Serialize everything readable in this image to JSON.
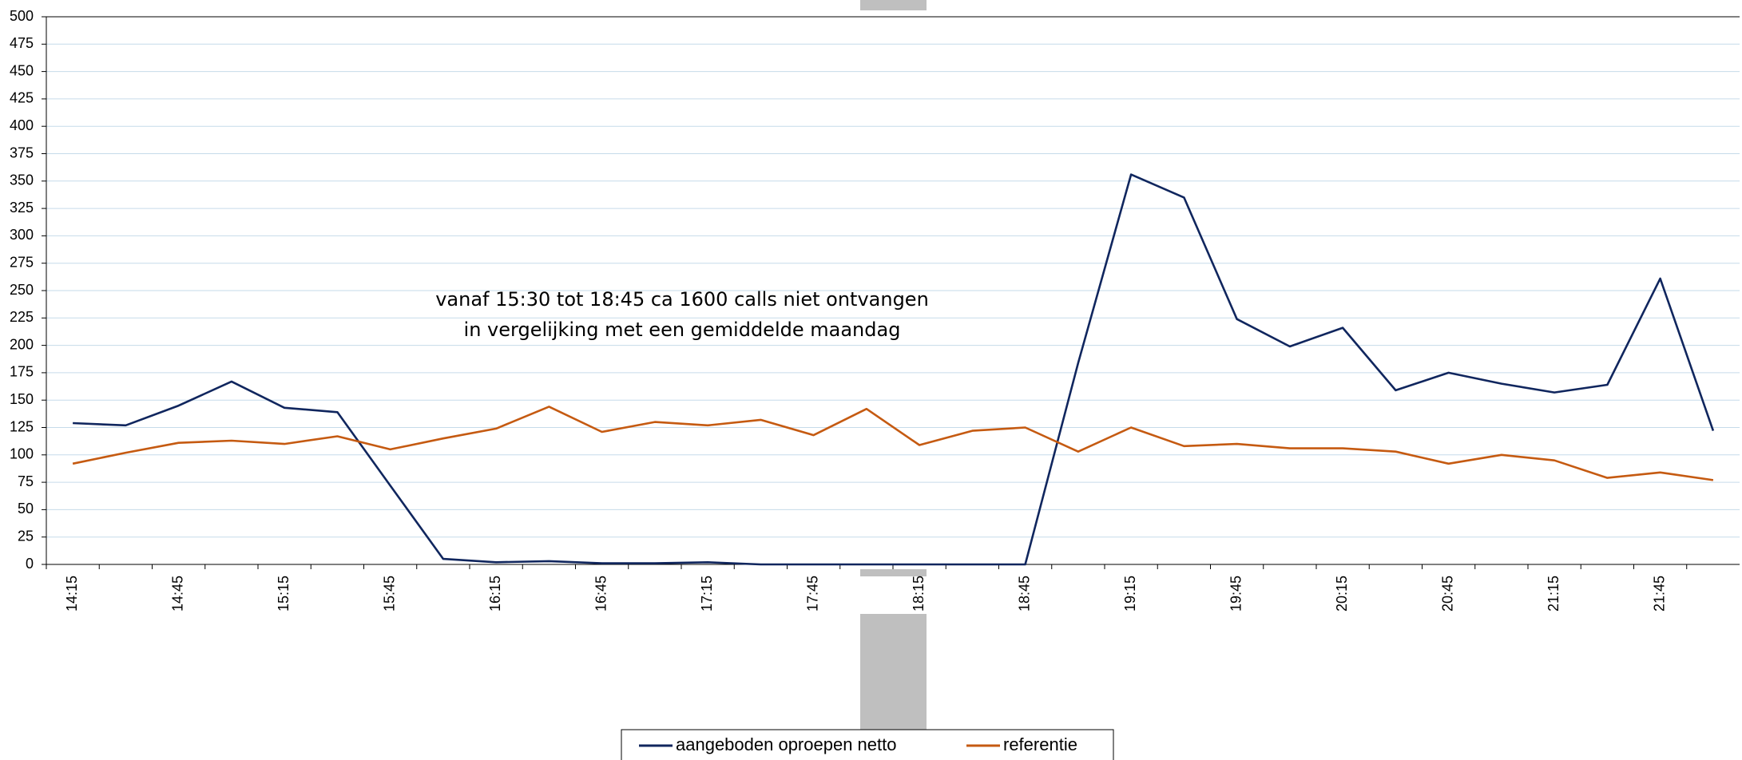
{
  "chart_data": {
    "type": "line",
    "annotation": [
      "vanaf 15:30 tot 18:45 ca 1600 calls  niet ontvangen",
      "in vergelijking met een gemiddelde maandag"
    ],
    "categories": [
      "14:15",
      null,
      "14:45",
      null,
      "15:15",
      null,
      "15:45",
      null,
      "16:15",
      null,
      "16:45",
      null,
      "17:15",
      null,
      "17:45",
      null,
      "18:15",
      null,
      "18:45",
      null,
      "19:15",
      null,
      "19:45",
      null,
      "20:15",
      null,
      "20:45",
      null,
      "21:15",
      null,
      "21:45",
      null
    ],
    "series": [
      {
        "name": "aangeboden oproepen netto",
        "color": "#10265e",
        "values": [
          129,
          127,
          145,
          167,
          143,
          139,
          72,
          5,
          2,
          3,
          1,
          1,
          2,
          0,
          0,
          0,
          0,
          0,
          0,
          184,
          356,
          335,
          224,
          199,
          216,
          159,
          175,
          165,
          157,
          164,
          261,
          122
        ]
      },
      {
        "name": "referentie",
        "color": "#c55a11",
        "values": [
          92,
          102,
          111,
          113,
          110,
          117,
          105,
          115,
          124,
          144,
          121,
          130,
          127,
          132,
          118,
          142,
          109,
          122,
          125,
          103,
          125,
          108,
          110,
          106,
          106,
          103,
          92,
          100,
          95,
          79,
          84,
          77
        ]
      }
    ],
    "ylim": [
      0,
      500
    ],
    "yticks": [
      0,
      25,
      50,
      75,
      100,
      125,
      150,
      175,
      200,
      225,
      250,
      275,
      300,
      325,
      350,
      375,
      400,
      425,
      450,
      475,
      500
    ],
    "grid": true,
    "legend": "bottom"
  }
}
